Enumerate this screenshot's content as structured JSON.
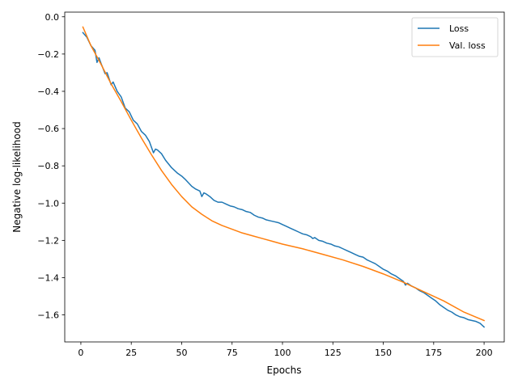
{
  "chart_data": {
    "type": "line",
    "title": "",
    "xlabel": "Epochs",
    "ylabel": "Negative log-likelihood",
    "xlim": [
      -8,
      210
    ],
    "ylim": [
      -1.745,
      0.025
    ],
    "xticks": [
      0,
      25,
      50,
      75,
      100,
      125,
      150,
      175,
      200
    ],
    "yticks": [
      0.0,
      -0.2,
      -0.4,
      -0.6,
      -0.8,
      -1.0,
      -1.2,
      -1.4,
      -1.6
    ],
    "ytick_labels": [
      "0.0",
      "−0.2",
      "−0.4",
      "−0.6",
      "−0.8",
      "−1.0",
      "−1.2",
      "−1.4",
      "−1.6"
    ],
    "grid": false,
    "legend_position": "top-right",
    "series": [
      {
        "name": "Loss",
        "color": "#1f77b4",
        "x": [
          1,
          3,
          5,
          7,
          8,
          9,
          10,
          12,
          13,
          15,
          16,
          18,
          20,
          22,
          24,
          26,
          28,
          30,
          32,
          34,
          36,
          37,
          38,
          40,
          42,
          45,
          48,
          50,
          52,
          55,
          57,
          59,
          60,
          61,
          62,
          64,
          66,
          68,
          70,
          72,
          74,
          76,
          78,
          80,
          82,
          84,
          86,
          88,
          90,
          92,
          94,
          96,
          98,
          100,
          102,
          104,
          106,
          108,
          110,
          112,
          114,
          115,
          116,
          118,
          120,
          122,
          124,
          126,
          128,
          130,
          132,
          134,
          136,
          138,
          140,
          142,
          144,
          146,
          148,
          150,
          152,
          154,
          156,
          158,
          160,
          161,
          162,
          164,
          166,
          168,
          170,
          172,
          174,
          176,
          178,
          180,
          182,
          184,
          186,
          188,
          190,
          192,
          194,
          196,
          198,
          200
        ],
        "values": [
          -0.085,
          -0.11,
          -0.155,
          -0.18,
          -0.245,
          -0.22,
          -0.25,
          -0.305,
          -0.3,
          -0.365,
          -0.35,
          -0.4,
          -0.43,
          -0.49,
          -0.51,
          -0.555,
          -0.575,
          -0.615,
          -0.635,
          -0.67,
          -0.73,
          -0.71,
          -0.715,
          -0.735,
          -0.77,
          -0.81,
          -0.84,
          -0.855,
          -0.875,
          -0.91,
          -0.925,
          -0.935,
          -0.965,
          -0.945,
          -0.95,
          -0.965,
          -0.985,
          -0.995,
          -0.995,
          -1.005,
          -1.015,
          -1.02,
          -1.03,
          -1.035,
          -1.045,
          -1.05,
          -1.065,
          -1.075,
          -1.08,
          -1.09,
          -1.095,
          -1.1,
          -1.105,
          -1.115,
          -1.125,
          -1.135,
          -1.145,
          -1.155,
          -1.165,
          -1.17,
          -1.18,
          -1.19,
          -1.185,
          -1.2,
          -1.205,
          -1.215,
          -1.22,
          -1.23,
          -1.235,
          -1.245,
          -1.255,
          -1.265,
          -1.275,
          -1.285,
          -1.29,
          -1.305,
          -1.315,
          -1.325,
          -1.34,
          -1.355,
          -1.365,
          -1.38,
          -1.39,
          -1.405,
          -1.42,
          -1.44,
          -1.43,
          -1.445,
          -1.455,
          -1.47,
          -1.48,
          -1.495,
          -1.51,
          -1.525,
          -1.545,
          -1.56,
          -1.575,
          -1.585,
          -1.6,
          -1.61,
          -1.615,
          -1.625,
          -1.63,
          -1.635,
          -1.645,
          -1.665
        ]
      },
      {
        "name": "Val. loss",
        "color": "#ff7f0e",
        "x": [
          1,
          5,
          10,
          15,
          20,
          25,
          30,
          35,
          40,
          45,
          50,
          55,
          60,
          65,
          70,
          75,
          80,
          85,
          90,
          95,
          100,
          110,
          120,
          130,
          140,
          150,
          160,
          170,
          180,
          190,
          200
        ],
        "values": [
          -0.055,
          -0.155,
          -0.255,
          -0.36,
          -0.455,
          -0.555,
          -0.65,
          -0.74,
          -0.825,
          -0.9,
          -0.965,
          -1.02,
          -1.06,
          -1.095,
          -1.12,
          -1.14,
          -1.16,
          -1.175,
          -1.19,
          -1.205,
          -1.22,
          -1.245,
          -1.275,
          -1.305,
          -1.34,
          -1.38,
          -1.425,
          -1.475,
          -1.525,
          -1.585,
          -1.63
        ]
      }
    ]
  }
}
